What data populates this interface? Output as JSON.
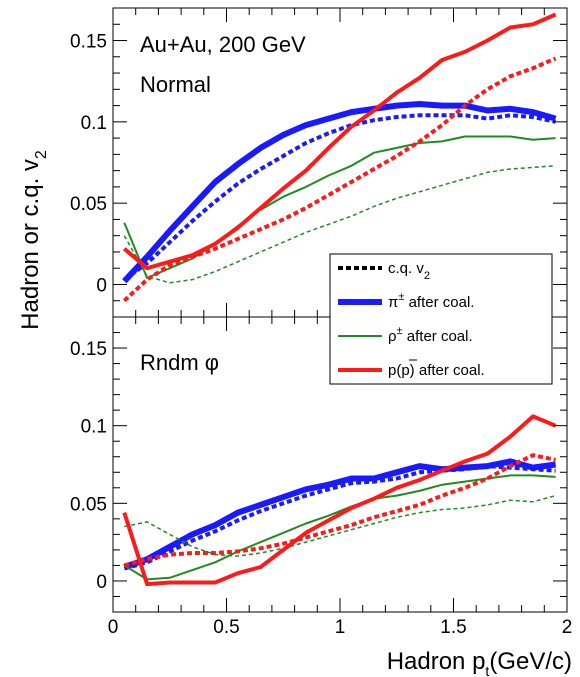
{
  "chart_data": {
    "type": "line",
    "xlabel": "Hadron p",
    "xlabel_sub": "t",
    "xlabel_unit": "(GeV/c)",
    "ylabel": "Hadron or c.q. v",
    "ylabel_sub": "2",
    "xlim": [
      0,
      2
    ],
    "x_ticks": [
      "0",
      "0.5",
      "1",
      "1.5",
      "2"
    ],
    "legend": {
      "placement": "inside top panel, bottom-right",
      "entries": [
        {
          "label": "c.q. v",
          "sub": "2"
        },
        {
          "label": "π",
          "sup": "±",
          "rest": " after coal."
        },
        {
          "label": "ρ",
          "sup": "±",
          "rest": " after coal."
        },
        {
          "label": "p(p)",
          "rest": " after coal."
        }
      ]
    },
    "colors": {
      "pion": "#1a1aff",
      "rho": "#1e8c1e",
      "proton": "#ff1a1a",
      "cq": "#000000"
    },
    "panels": [
      {
        "annotations": [
          "Au+Au, 200 GeV",
          "Normal"
        ],
        "ylim": [
          -0.02,
          0.17
        ],
        "y_ticks": [
          "0",
          "0.05",
          "0.1",
          "0.15"
        ],
        "series": [
          {
            "key": "pion_dashed",
            "color": "#1a1aff",
            "width": 4,
            "dash": true,
            "x": [
              0.05,
              0.15,
              0.25,
              0.35,
              0.45,
              0.55,
              0.65,
              0.75,
              0.85,
              0.95,
              1.05,
              1.15,
              1.25,
              1.35,
              1.45,
              1.55,
              1.65,
              1.75,
              1.85,
              1.95
            ],
            "y": [
              0.003,
              0.013,
              0.026,
              0.039,
              0.051,
              0.062,
              0.071,
              0.079,
              0.087,
              0.093,
              0.098,
              0.101,
              0.103,
              0.104,
              0.104,
              0.104,
              0.102,
              0.104,
              0.103,
              0.1
            ]
          },
          {
            "key": "pion",
            "color": "#1a1aff",
            "width": 6,
            "dash": false,
            "x": [
              0.05,
              0.15,
              0.25,
              0.35,
              0.45,
              0.55,
              0.65,
              0.75,
              0.85,
              0.95,
              1.05,
              1.15,
              1.25,
              1.35,
              1.45,
              1.55,
              1.65,
              1.75,
              1.85,
              1.95
            ],
            "y": [
              0.002,
              0.017,
              0.033,
              0.048,
              0.063,
              0.074,
              0.084,
              0.092,
              0.098,
              0.102,
              0.106,
              0.108,
              0.11,
              0.111,
              0.11,
              0.11,
              0.107,
              0.108,
              0.106,
              0.102
            ]
          },
          {
            "key": "rho_dashed",
            "color": "#1e8c1e",
            "width": 1.5,
            "dash": true,
            "x": [
              0.05,
              0.15,
              0.25,
              0.35,
              0.45,
              0.55,
              0.65,
              0.75,
              0.85,
              0.95,
              1.05,
              1.15,
              1.25,
              1.35,
              1.45,
              1.55,
              1.65,
              1.75,
              1.85,
              1.95
            ],
            "y": [
              0.03,
              0.005,
              0.001,
              0.003,
              0.008,
              0.014,
              0.02,
              0.026,
              0.032,
              0.037,
              0.042,
              0.048,
              0.053,
              0.057,
              0.061,
              0.065,
              0.069,
              0.071,
              0.072,
              0.073
            ]
          },
          {
            "key": "rho",
            "color": "#1e8c1e",
            "width": 2,
            "dash": false,
            "x": [
              0.05,
              0.15,
              0.25,
              0.35,
              0.45,
              0.55,
              0.65,
              0.75,
              0.85,
              0.95,
              1.05,
              1.15,
              1.25,
              1.35,
              1.45,
              1.55,
              1.65,
              1.75,
              1.85,
              1.95
            ],
            "y": [
              0.038,
              0.004,
              0.01,
              0.016,
              0.025,
              0.036,
              0.046,
              0.054,
              0.06,
              0.067,
              0.073,
              0.081,
              0.084,
              0.087,
              0.088,
              0.091,
              0.091,
              0.091,
              0.089,
              0.09
            ]
          },
          {
            "key": "proton_dashed",
            "color": "#ff1a1a",
            "width": 4,
            "dash": true,
            "x": [
              0.05,
              0.15,
              0.25,
              0.35,
              0.45,
              0.55,
              0.65,
              0.75,
              0.85,
              0.95,
              1.05,
              1.15,
              1.25,
              1.35,
              1.45,
              1.55,
              1.65,
              1.75,
              1.85,
              1.95
            ],
            "y": [
              -0.01,
              0.003,
              0.012,
              0.017,
              0.022,
              0.028,
              0.034,
              0.04,
              0.047,
              0.055,
              0.063,
              0.071,
              0.079,
              0.088,
              0.098,
              0.11,
              0.12,
              0.128,
              0.133,
              0.139
            ]
          },
          {
            "key": "proton",
            "color": "#ff1a1a",
            "width": 4,
            "dash": false,
            "x": [
              0.05,
              0.15,
              0.25,
              0.35,
              0.45,
              0.55,
              0.65,
              0.75,
              0.85,
              0.95,
              1.05,
              1.15,
              1.25,
              1.35,
              1.45,
              1.55,
              1.65,
              1.75,
              1.85,
              1.95
            ],
            "y": [
              0.022,
              0.01,
              0.014,
              0.018,
              0.025,
              0.035,
              0.047,
              0.059,
              0.07,
              0.084,
              0.097,
              0.107,
              0.118,
              0.127,
              0.138,
              0.143,
              0.15,
              0.158,
              0.16,
              0.166
            ]
          }
        ]
      },
      {
        "annotations": [
          "Rndm φ"
        ],
        "ylim": [
          -0.02,
          0.17
        ],
        "y_ticks": [
          "0",
          "0.05",
          "0.1",
          "0.15"
        ],
        "series": [
          {
            "key": "pion_dashed",
            "color": "#1a1aff",
            "width": 4,
            "dash": true,
            "x": [
              0.05,
              0.15,
              0.25,
              0.35,
              0.45,
              0.55,
              0.65,
              0.75,
              0.85,
              0.95,
              1.05,
              1.15,
              1.25,
              1.35,
              1.45,
              1.55,
              1.65,
              1.75,
              1.85,
              1.95
            ],
            "y": [
              0.008,
              0.012,
              0.019,
              0.026,
              0.032,
              0.039,
              0.045,
              0.05,
              0.055,
              0.059,
              0.063,
              0.064,
              0.066,
              0.07,
              0.071,
              0.072,
              0.074,
              0.073,
              0.072,
              0.071
            ]
          },
          {
            "key": "pion",
            "color": "#1a1aff",
            "width": 6,
            "dash": false,
            "x": [
              0.05,
              0.15,
              0.25,
              0.35,
              0.45,
              0.55,
              0.65,
              0.75,
              0.85,
              0.95,
              1.05,
              1.15,
              1.25,
              1.35,
              1.45,
              1.55,
              1.65,
              1.75,
              1.85,
              1.95
            ],
            "y": [
              0.009,
              0.014,
              0.022,
              0.03,
              0.036,
              0.044,
              0.049,
              0.054,
              0.059,
              0.062,
              0.066,
              0.066,
              0.07,
              0.074,
              0.072,
              0.073,
              0.074,
              0.077,
              0.073,
              0.075
            ]
          },
          {
            "key": "rho_dashed",
            "color": "#1e8c1e",
            "width": 1.5,
            "dash": true,
            "x": [
              0.05,
              0.15,
              0.25,
              0.35,
              0.45,
              0.55,
              0.65,
              0.75,
              0.85,
              0.95,
              1.05,
              1.15,
              1.25,
              1.35,
              1.45,
              1.55,
              1.65,
              1.75,
              1.85,
              1.95
            ],
            "y": [
              0.035,
              0.038,
              0.03,
              0.022,
              0.017,
              0.016,
              0.018,
              0.021,
              0.025,
              0.029,
              0.033,
              0.037,
              0.041,
              0.044,
              0.046,
              0.047,
              0.049,
              0.052,
              0.051,
              0.055
            ]
          },
          {
            "key": "rho",
            "color": "#1e8c1e",
            "width": 2,
            "dash": false,
            "x": [
              0.05,
              0.15,
              0.25,
              0.35,
              0.45,
              0.55,
              0.65,
              0.75,
              0.85,
              0.95,
              1.05,
              1.15,
              1.25,
              1.35,
              1.45,
              1.55,
              1.65,
              1.75,
              1.85,
              1.95
            ],
            "y": [
              0.01,
              0.001,
              0.002,
              0.007,
              0.012,
              0.019,
              0.025,
              0.031,
              0.037,
              0.042,
              0.048,
              0.053,
              0.055,
              0.058,
              0.062,
              0.064,
              0.066,
              0.068,
              0.068,
              0.067
            ]
          },
          {
            "key": "proton_dashed",
            "color": "#ff1a1a",
            "width": 4,
            "dash": true,
            "x": [
              0.05,
              0.15,
              0.25,
              0.35,
              0.45,
              0.55,
              0.65,
              0.75,
              0.85,
              0.95,
              1.05,
              1.15,
              1.25,
              1.35,
              1.45,
              1.55,
              1.65,
              1.75,
              1.85,
              1.95
            ],
            "y": [
              0.01,
              0.014,
              0.017,
              0.018,
              0.018,
              0.019,
              0.021,
              0.024,
              0.028,
              0.032,
              0.036,
              0.041,
              0.045,
              0.049,
              0.055,
              0.06,
              0.066,
              0.074,
              0.081,
              0.078
            ]
          },
          {
            "key": "proton",
            "color": "#ff1a1a",
            "width": 4,
            "dash": false,
            "x": [
              0.05,
              0.15,
              0.25,
              0.35,
              0.45,
              0.55,
              0.65,
              0.75,
              0.85,
              0.95,
              1.05,
              1.15,
              1.25,
              1.35,
              1.45,
              1.55,
              1.65,
              1.75,
              1.85,
              1.95
            ],
            "y": [
              0.044,
              -0.002,
              -0.001,
              -0.001,
              -0.001,
              0.005,
              0.009,
              0.02,
              0.031,
              0.039,
              0.047,
              0.053,
              0.06,
              0.065,
              0.071,
              0.077,
              0.082,
              0.093,
              0.106,
              0.1
            ]
          }
        ]
      }
    ]
  }
}
